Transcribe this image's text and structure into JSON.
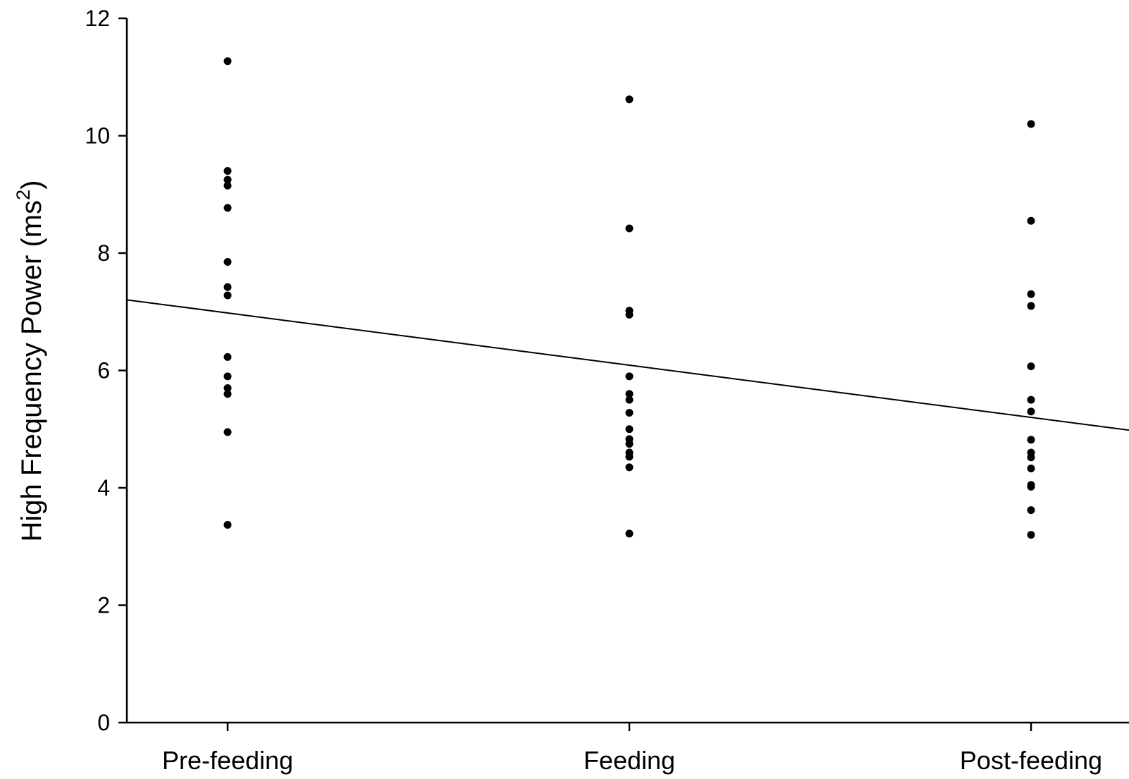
{
  "chart_data": {
    "type": "scatter",
    "title": "",
    "xlabel": "",
    "ylabel": {
      "text": "High Frequency Power (ms",
      "superscript": "2",
      "suffix": ")"
    },
    "categories": [
      "Pre-feeding",
      "Feeding",
      "Post-feeding"
    ],
    "ylim": [
      0,
      12
    ],
    "yticks": [
      0,
      2,
      4,
      6,
      8,
      10,
      12
    ],
    "grid": false,
    "legend": "none",
    "series": [
      {
        "category": "Pre-feeding",
        "values": [
          11.27,
          9.4,
          9.25,
          9.15,
          8.77,
          7.85,
          7.42,
          7.28,
          6.23,
          5.9,
          5.7,
          5.6,
          4.95,
          3.37
        ]
      },
      {
        "category": "Feeding",
        "values": [
          10.62,
          8.42,
          7.02,
          6.95,
          5.9,
          5.6,
          5.5,
          5.28,
          5.0,
          4.83,
          4.75,
          4.6,
          4.53,
          4.35,
          3.22
        ]
      },
      {
        "category": "Post-feeding",
        "values": [
          10.2,
          8.55,
          7.3,
          7.1,
          6.07,
          5.5,
          5.3,
          4.82,
          4.6,
          4.52,
          4.33,
          4.05,
          4.02,
          3.62,
          3.2
        ]
      }
    ],
    "trend_line": {
      "x": [
        0,
        2
      ],
      "y": [
        6.98,
        5.2
      ]
    },
    "marker_color": "#000000",
    "line_color": "#000000"
  }
}
